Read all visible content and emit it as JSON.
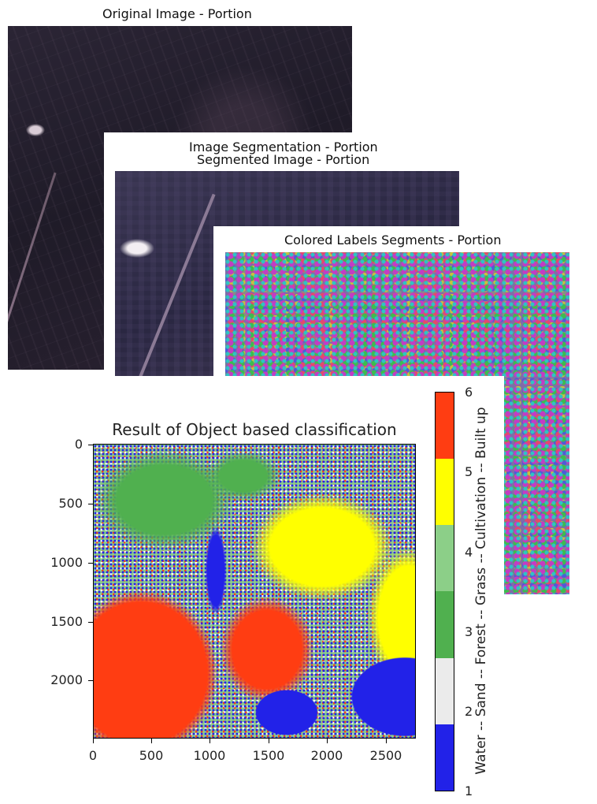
{
  "panels": {
    "original": {
      "title": "Original Image - Portion"
    },
    "segmentation": {
      "title": "Image Segmentation - Portion",
      "subtitle": "Segmented Image - Portion"
    },
    "labels": {
      "title": "Colored Labels Segments - Portion"
    }
  },
  "classification": {
    "title": "Result of Object based classification",
    "colorbar_label": "Water -- Sand -- Forest -- Grass -- Cultivation -- Built up",
    "colorbar_ticks": [
      "1",
      "2",
      "3",
      "4",
      "5",
      "6"
    ],
    "classes": [
      {
        "name": "Water",
        "color": "#2222e8"
      },
      {
        "name": "Sand",
        "color": "#ebebeb"
      },
      {
        "name": "Forest",
        "color": "#50b04f"
      },
      {
        "name": "Grass",
        "color": "#8ccf88"
      },
      {
        "name": "Cultivation",
        "color": "#ffff00"
      },
      {
        "name": "Built up",
        "color": "#ff3d12"
      }
    ]
  },
  "chart_data": {
    "type": "heatmap",
    "title": "Result of Object based classification",
    "x_ticks": [
      "0",
      "500",
      "1000",
      "1500",
      "2000",
      "2500"
    ],
    "y_ticks": [
      "0",
      "500",
      "1000",
      "1500",
      "2000"
    ],
    "xlim": [
      0,
      2730
    ],
    "ylim": [
      2480,
      0
    ],
    "colorbar": {
      "range": [
        1,
        6
      ],
      "ticks": [
        1,
        2,
        3,
        4,
        5,
        6
      ]
    }
  }
}
